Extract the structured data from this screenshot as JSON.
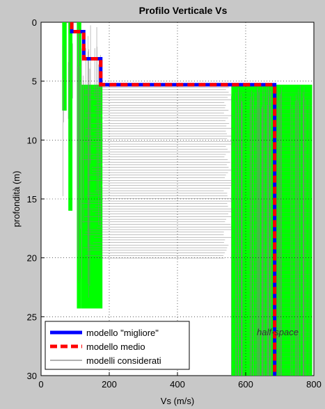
{
  "chart_data": {
    "type": "line",
    "title": "Profilo Verticale Vs",
    "xlabel": "Vs (m/s)",
    "ylabel": "profondità (m)",
    "xlim": [
      0,
      800
    ],
    "ylim": [
      0,
      30
    ],
    "y_reversed": true,
    "grid": true,
    "legend_placement": "bottom-left",
    "xticks": [
      0,
      200,
      400,
      600,
      800
    ],
    "yticks": [
      0,
      5,
      10,
      15,
      20,
      25,
      30
    ],
    "annotation": "half-space",
    "colors": {
      "best": "#0000ff",
      "mean": "#ff0000",
      "considered": "#808080",
      "fill": "#00ff00",
      "background": "#c8c8c8",
      "axes": "#ffffff"
    },
    "series": [
      {
        "name": "modello \"migliore\"",
        "points": [
          [
            90,
            0
          ],
          [
            90,
            0.8
          ],
          [
            125,
            0.8
          ],
          [
            125,
            3.1
          ],
          [
            175,
            3.1
          ],
          [
            175,
            5.3
          ],
          [
            685,
            5.3
          ],
          [
            685,
            30
          ]
        ]
      },
      {
        "name": "modello medio",
        "points": [
          [
            90,
            0
          ],
          [
            90,
            0.8
          ],
          [
            125,
            0.8
          ],
          [
            125,
            3.1
          ],
          [
            175,
            3.1
          ],
          [
            175,
            5.3
          ],
          [
            685,
            5.3
          ],
          [
            685,
            30
          ]
        ]
      },
      {
        "name": "modelli considerati",
        "points": []
      }
    ],
    "green_bands": [
      {
        "x": [
          62,
          75
        ],
        "y": [
          0,
          7.5
        ]
      },
      {
        "x": [
          80,
          92
        ],
        "y": [
          0,
          16
        ]
      },
      {
        "x": [
          105,
          118
        ],
        "y": [
          0,
          24.3
        ]
      },
      {
        "x": [
          118,
          180
        ],
        "y": [
          5.3,
          24.3
        ]
      },
      {
        "x": [
          558,
          795
        ],
        "y": [
          5.3,
          30
        ]
      }
    ]
  }
}
